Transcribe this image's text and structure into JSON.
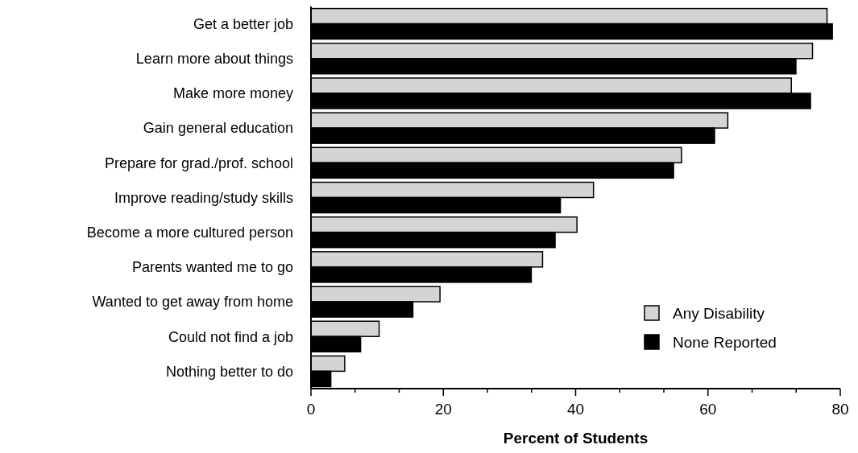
{
  "chart_data": {
    "type": "bar",
    "orientation": "horizontal",
    "xlabel": "Percent of Students",
    "categories": [
      "Get a better job",
      "Learn more about things",
      "Make more money",
      "Gain general education",
      "Prepare for grad./prof. school",
      "Improve reading/study skills",
      "Become a more cultured person",
      "Parents wanted me to go",
      "Wanted to get away from home",
      "Could not find a job",
      "Nothing better to do"
    ],
    "series": [
      {
        "name": "Any Disability",
        "color": "#d4d4d4",
        "values": [
          78,
          75.8,
          72.6,
          63,
          56,
          42.7,
          40.2,
          35,
          19.5,
          10.3,
          5.1
        ]
      },
      {
        "name": "None Reported",
        "color": "#000000",
        "values": [
          78.8,
          73.3,
          75.5,
          61,
          54.8,
          37.7,
          36.9,
          33.3,
          15.4,
          7.5,
          3
        ]
      }
    ],
    "xlim": [
      0,
      80
    ],
    "xticks": [
      0,
      {
        "value": 6.67,
        "label": null
      },
      {
        "value": 13.33,
        "label": null
      },
      20,
      {
        "value": 26.67,
        "label": null
      },
      {
        "value": 33.33,
        "label": null
      },
      40,
      {
        "value": 46.67,
        "label": null
      },
      {
        "value": 53.33,
        "label": null
      },
      60,
      {
        "value": 66.67,
        "label": null
      },
      {
        "value": 73.33,
        "label": null
      },
      80
    ],
    "legend": "bottom right",
    "grid": false
  }
}
